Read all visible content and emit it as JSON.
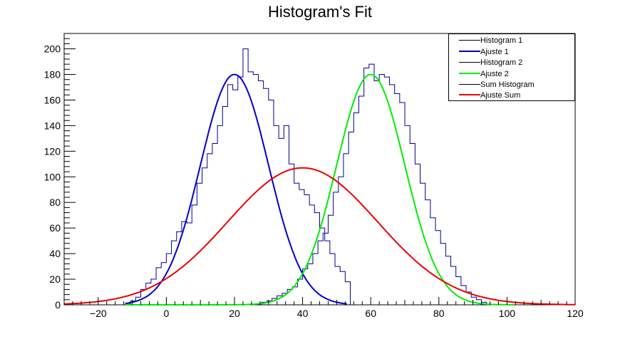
{
  "chart_data": {
    "type": "line",
    "title": "Histogram's Fit",
    "xlabel": "",
    "ylabel": "",
    "xlim": [
      -30,
      120
    ],
    "ylim": [
      0,
      212
    ],
    "x_ticks": [
      -20,
      0,
      20,
      40,
      60,
      80,
      100,
      120
    ],
    "y_ticks": [
      0,
      20,
      40,
      60,
      80,
      100,
      120,
      140,
      160,
      180,
      200
    ],
    "grid": false,
    "legend_position": "top-right",
    "histogram_bin_width": 1.5,
    "series": [
      {
        "name": "Histogram 1",
        "kind": "histogram",
        "color": "#000099",
        "x": [
          -12,
          -10.5,
          -9,
          -7.5,
          -6,
          -4.5,
          -3,
          -1.5,
          0,
          1.5,
          3,
          4.5,
          6,
          7.5,
          9,
          10.5,
          12,
          13.5,
          15,
          16.5,
          18,
          19.5,
          21,
          22.5,
          24,
          25.5,
          27,
          28.5,
          30,
          31.5,
          33,
          34.5,
          36,
          37.5,
          39,
          40.5,
          42,
          43.5,
          45,
          46.5,
          48,
          49.5,
          51,
          52.5
        ],
        "values": [
          1,
          3,
          6,
          12,
          17,
          20,
          29,
          33,
          40,
          50,
          57,
          65,
          64,
          78,
          95,
          107,
          118,
          126,
          140,
          155,
          172,
          168,
          178,
          200,
          182,
          180,
          175,
          169,
          160,
          140,
          130,
          140,
          110,
          95,
          90,
          86,
          78,
          72,
          60,
          50,
          40,
          30,
          26,
          18
        ]
      },
      {
        "name": "Ajuste 1",
        "kind": "fit",
        "color": "#0000cc",
        "mean": 20,
        "sigma": 10,
        "amplitude": 180,
        "x_range": [
          -12,
          53
        ]
      },
      {
        "name": "Histogram 2",
        "kind": "histogram",
        "color": "#000099",
        "x": [
          28,
          29.5,
          31,
          32.5,
          34,
          35.5,
          37,
          38.5,
          40,
          41.5,
          43,
          44.5,
          46,
          47.5,
          49,
          50.5,
          52,
          53.5,
          55,
          56.5,
          58,
          59.5,
          61,
          62.5,
          64,
          65.5,
          67,
          68.5,
          70,
          71.5,
          73,
          74.5,
          76,
          77.5,
          79,
          80.5,
          82,
          83.5,
          85,
          86.5,
          88,
          89.5,
          91,
          92.5
        ],
        "values": [
          2,
          3,
          5,
          7,
          9,
          12,
          14,
          20,
          28,
          32,
          40,
          50,
          56,
          70,
          88,
          100,
          118,
          135,
          150,
          163,
          185,
          188,
          175,
          180,
          178,
          172,
          165,
          158,
          140,
          126,
          110,
          95,
          82,
          68,
          58,
          48,
          38,
          30,
          22,
          15,
          10,
          6,
          4,
          2
        ]
      },
      {
        "name": "Ajuste 2",
        "kind": "fit",
        "color": "#00ee00",
        "mean": 60,
        "sigma": 10,
        "amplitude": 180,
        "x_range": [
          -12,
          102
        ]
      },
      {
        "name": "Sum Histogram",
        "kind": "histogram",
        "color": "#000099",
        "x": [],
        "values": []
      },
      {
        "name": "Ajuste Sum",
        "kind": "fit",
        "color": "#ee0000",
        "mean": 40,
        "sigma": 22,
        "amplitude": 107,
        "x_range": [
          -30,
          120
        ]
      }
    ]
  }
}
